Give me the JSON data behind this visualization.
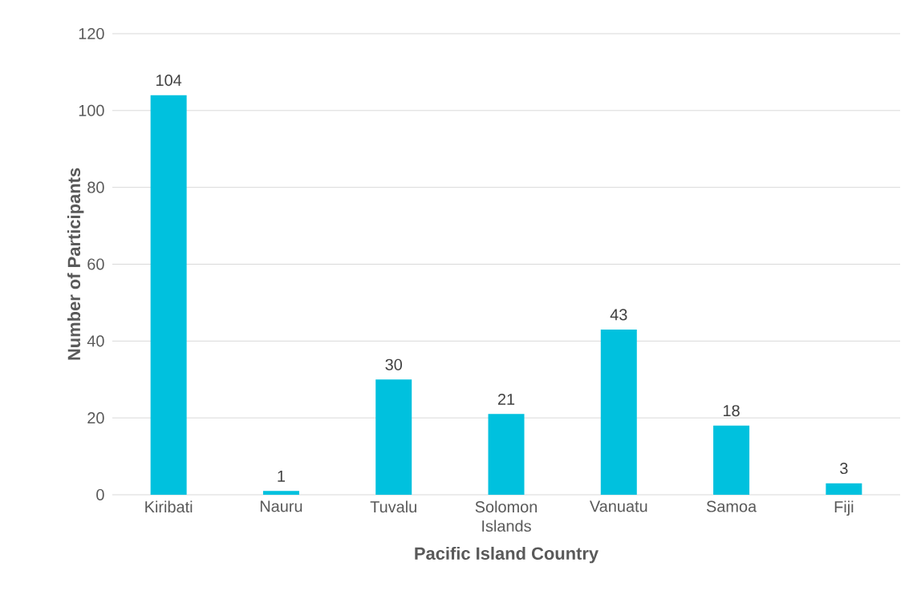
{
  "chart_data": {
    "type": "bar",
    "xlabel": "Pacific Island Country",
    "ylabel": "Number of Participants",
    "categories": [
      "Kiribati",
      "Nauru",
      "Tuvalu",
      "Solomon Islands",
      "Vanuatu",
      "Samoa",
      "Fiji"
    ],
    "values": [
      104,
      1,
      30,
      21,
      43,
      18,
      3
    ],
    "color": "#00c1de",
    "ylim": [
      0,
      120
    ],
    "yticks": [
      0,
      20,
      40,
      60,
      80,
      100,
      120
    ],
    "grid": "y",
    "data_labels": true
  }
}
